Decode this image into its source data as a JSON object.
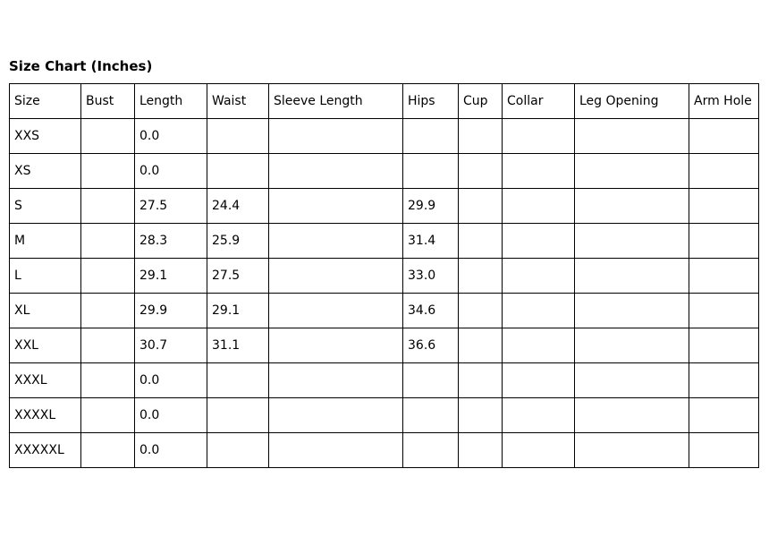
{
  "page": {
    "title": "Size Chart (Inches)"
  },
  "colors": {
    "background": "#ffffff",
    "text": "#000000",
    "border": "#000000"
  },
  "chart_data": {
    "type": "table",
    "title": "Size Chart (Inches)",
    "unit": "Inches",
    "columns": [
      "Size",
      "Bust",
      "Length",
      "Waist",
      "Sleeve Length",
      "Hips",
      "Cup",
      "Collar",
      "Leg Opening",
      "Arm Hole"
    ],
    "rows": [
      [
        "XXS",
        "",
        "0.0",
        "",
        "",
        "",
        "",
        "",
        "",
        ""
      ],
      [
        "XS",
        "",
        "0.0",
        "",
        "",
        "",
        "",
        "",
        "",
        ""
      ],
      [
        "S",
        "",
        "27.5",
        "24.4",
        "",
        "29.9",
        "",
        "",
        "",
        ""
      ],
      [
        "M",
        "",
        "28.3",
        "25.9",
        "",
        "31.4",
        "",
        "",
        "",
        ""
      ],
      [
        "L",
        "",
        "29.1",
        "27.5",
        "",
        "33.0",
        "",
        "",
        "",
        ""
      ],
      [
        "XL",
        "",
        "29.9",
        "29.1",
        "",
        "34.6",
        "",
        "",
        "",
        ""
      ],
      [
        "XXL",
        "",
        "30.7",
        "31.1",
        "",
        "36.6",
        "",
        "",
        "",
        ""
      ],
      [
        "XXXL",
        "",
        "0.0",
        "",
        "",
        "",
        "",
        "",
        "",
        ""
      ],
      [
        "XXXXL",
        "",
        "0.0",
        "",
        "",
        "",
        "",
        "",
        "",
        ""
      ],
      [
        "XXXXXL",
        "",
        "0.0",
        "",
        "",
        "",
        "",
        "",
        "",
        ""
      ]
    ]
  }
}
